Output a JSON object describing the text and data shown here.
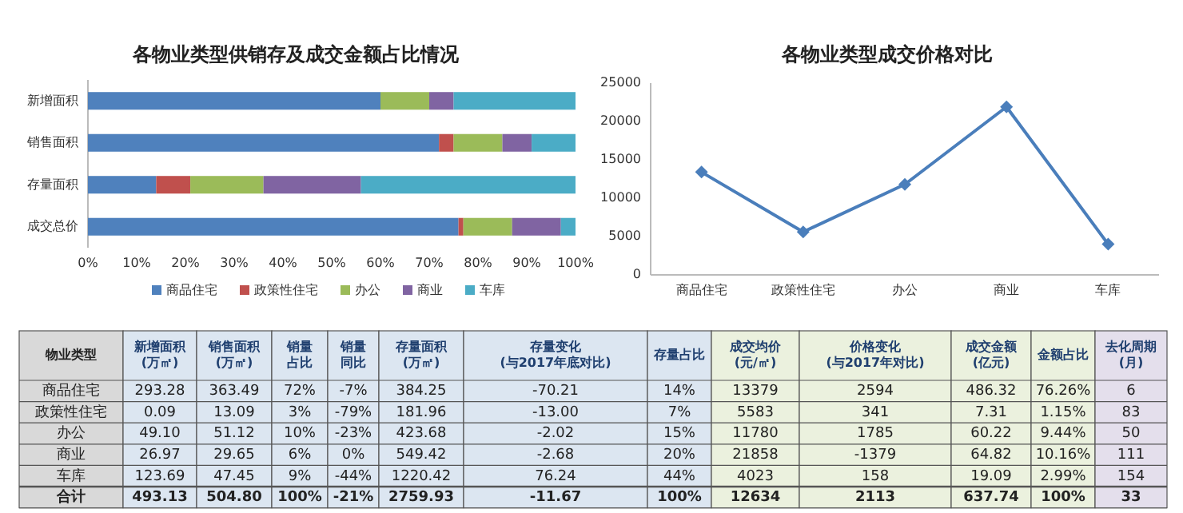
{
  "chart_data": [
    {
      "type": "bar",
      "orientation": "horizontal",
      "stacked": true,
      "title": "各物业类型供销存及成交金额占比情况",
      "categories": [
        "新增面积",
        "销售面积",
        "存量面积",
        "成交总价"
      ],
      "series": [
        {
          "name": "商品住宅",
          "color": "#4f81bd",
          "values": [
            60,
            72,
            14,
            76
          ]
        },
        {
          "name": "政策性住宅",
          "color": "#c0504d",
          "values": [
            0,
            3,
            7,
            1
          ]
        },
        {
          "name": "办公",
          "color": "#9bbb59",
          "values": [
            10,
            10,
            15,
            10
          ]
        },
        {
          "name": "商业",
          "color": "#8064a2",
          "values": [
            5,
            6,
            20,
            10
          ]
        },
        {
          "name": "车库",
          "color": "#4bacc6",
          "values": [
            25,
            9,
            44,
            3
          ]
        }
      ],
      "xlim": [
        0,
        100
      ],
      "xticks": [
        {
          "value": 0,
          "label": "0%"
        },
        {
          "value": 10,
          "label": "10%"
        },
        {
          "value": 20,
          "label": "20%"
        },
        {
          "value": 30,
          "label": "30%"
        },
        {
          "value": 40,
          "label": "40%"
        },
        {
          "value": 50,
          "label": "50%"
        },
        {
          "value": 60,
          "label": "60%"
        },
        {
          "value": 70,
          "label": "70%"
        },
        {
          "value": 80,
          "label": "80%"
        },
        {
          "value": 90,
          "label": "90%"
        },
        {
          "value": 100,
          "label": "100%"
        }
      ],
      "legend": "bottom"
    },
    {
      "type": "line",
      "title": "各物业类型成交价格对比",
      "categories": [
        "商品住宅",
        "政策性住宅",
        "办公",
        "商业",
        "车库"
      ],
      "values": [
        13400,
        5600,
        11800,
        21900,
        4000
      ],
      "color": "#4a7ebb",
      "marker": "diamond",
      "ylim": [
        0,
        25000
      ],
      "yticks": [
        0,
        5000,
        10000,
        15000,
        20000,
        25000
      ]
    },
    {
      "type": "other",
      "categories": [
        "物业类型",
        "新增面积\n(万㎡)",
        "销售面积\n(万㎡)",
        "销量占比",
        "销量同比",
        "存量面积\n(万㎡)",
        "存量变化\n(与2017年底对比)",
        "存量占比",
        "成交均价\n(元/㎡)",
        "价格变化\n(与2017年对比)",
        "成交金额\n(亿元)",
        "金额占比",
        "去化周期\n(月)"
      ],
      "colors": [
        "#d9d9d9",
        "#dce6f1",
        "#dce6f1",
        "#dce6f1",
        "#dce6f1",
        "#dce6f1",
        "#dce6f1",
        "#dce6f1",
        "#ebf1de",
        "#ebf1de",
        "#ebf1de",
        "#ebf1de",
        "#e4dfec"
      ],
      "y_categories": [
        "商品住宅",
        "政策性住宅",
        "办公",
        "商业",
        "车库",
        "合计"
      ],
      "cell_labels": [
        [
          "293.28",
          "363.49",
          "72%",
          "-7%",
          "384.25",
          "-70.21",
          "14%",
          "13379",
          "2594",
          "486.32",
          "76.26%",
          "6"
        ],
        [
          "0.09",
          "13.09",
          "3%",
          "-79%",
          "181.96",
          "-13.00",
          "7%",
          "5583",
          "341",
          "7.31",
          "1.15%",
          "83"
        ],
        [
          "49.10",
          "51.12",
          "10%",
          "-23%",
          "423.68",
          "-2.02",
          "15%",
          "11780",
          "1785",
          "60.22",
          "9.44%",
          "50"
        ],
        [
          "26.97",
          "29.65",
          "6%",
          "0%",
          "549.42",
          "-2.68",
          "20%",
          "21858",
          "-1379",
          "64.82",
          "10.16%",
          "111"
        ],
        [
          "123.69",
          "47.45",
          "9%",
          "-44%",
          "1220.42",
          "76.24",
          "44%",
          "4023",
          "158",
          "19.09",
          "2.99%",
          "154"
        ],
        [
          "493.13",
          "504.80",
          "100%",
          "-21%",
          "2759.93",
          "-11.67",
          "100%",
          "12634",
          "2113",
          "637.74",
          "100%",
          "33"
        ]
      ]
    }
  ]
}
